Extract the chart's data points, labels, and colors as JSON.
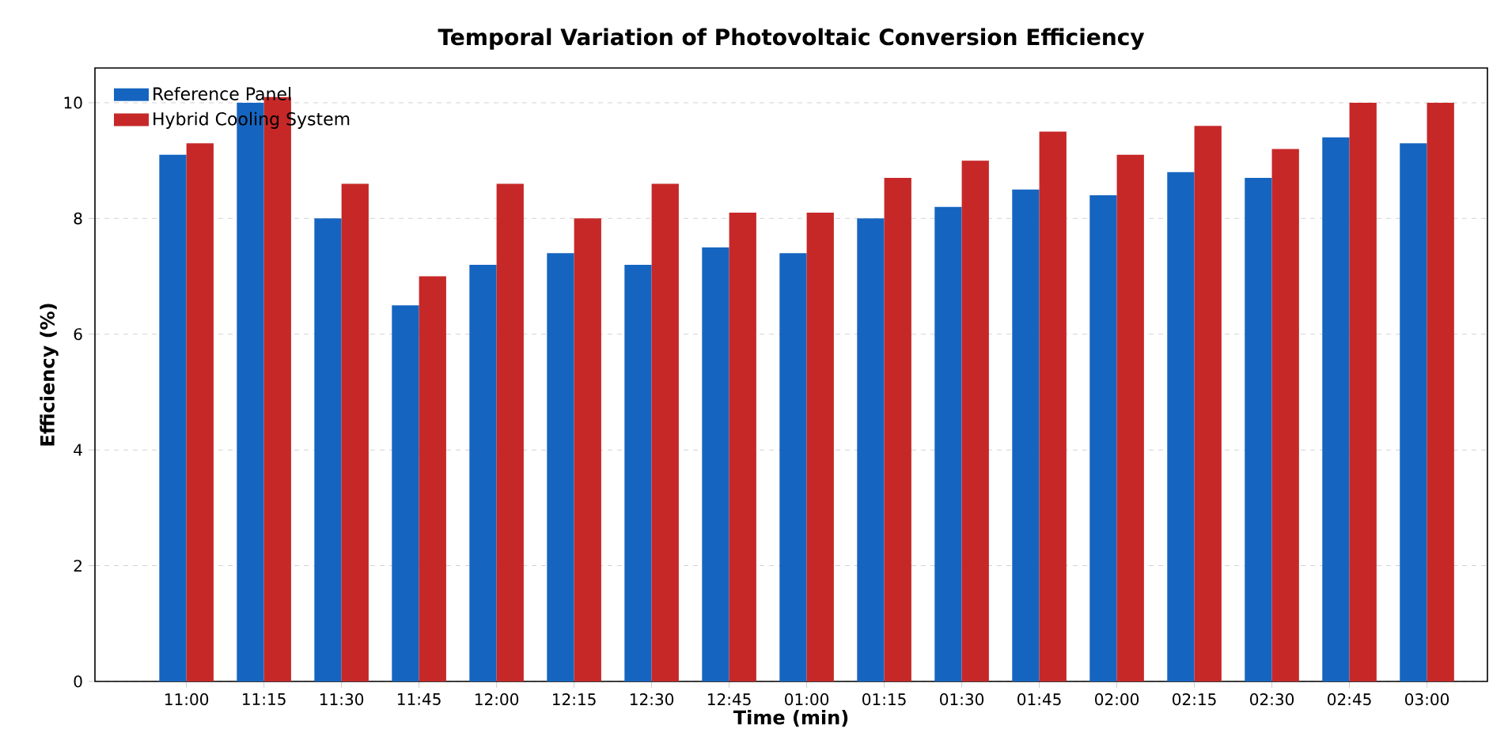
{
  "chart_data": {
    "type": "bar",
    "title": "Temporal Variation of Photovoltaic Conversion Efficiency",
    "xlabel": "Time (min)",
    "ylabel": "Efficiency (%)",
    "categories": [
      "11:00",
      "11:15",
      "11:30",
      "11:45",
      "12:00",
      "12:15",
      "12:30",
      "12:45",
      "01:00",
      "01:15",
      "01:30",
      "01:45",
      "02:00",
      "02:15",
      "02:30",
      "02:45",
      "03:00"
    ],
    "series": [
      {
        "name": "Reference Panel",
        "color": "#1565c0",
        "values": [
          9.1,
          10.0,
          8.0,
          6.5,
          7.2,
          7.4,
          7.2,
          7.5,
          7.4,
          8.0,
          8.2,
          8.5,
          8.4,
          8.8,
          8.7,
          9.4,
          9.3
        ]
      },
      {
        "name": "Hybrid Cooling System",
        "color": "#c62828",
        "values": [
          9.3,
          10.1,
          8.6,
          7.0,
          8.6,
          8.0,
          8.6,
          8.1,
          8.1,
          8.7,
          9.0,
          9.5,
          9.1,
          9.6,
          9.2,
          10.0,
          10.0
        ]
      }
    ],
    "ylim": [
      0,
      10.6
    ],
    "yticks": [
      0,
      2,
      4,
      6,
      8,
      10
    ],
    "grid": "y",
    "legend": "top left"
  }
}
